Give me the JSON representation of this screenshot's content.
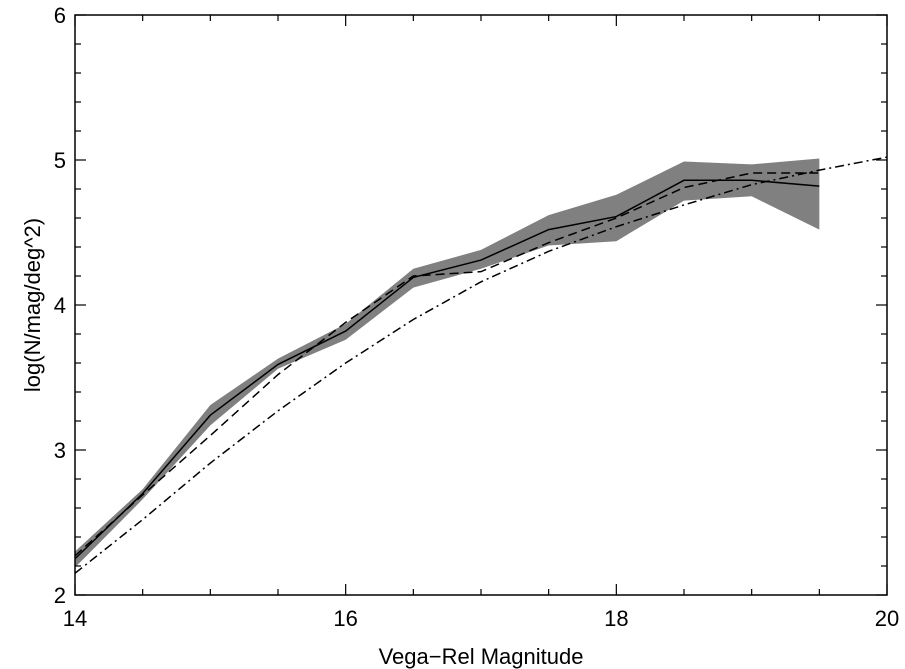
{
  "chart_data": {
    "type": "line",
    "title": "",
    "xlabel": "Vega−Rel Magnitude",
    "ylabel": "log(N/mag/deg^2)",
    "xlim": [
      14,
      20
    ],
    "ylim": [
      2,
      6
    ],
    "xticks": [
      14,
      16,
      18,
      20
    ],
    "yticks": [
      2,
      3,
      4,
      5,
      6
    ],
    "xtick_labels": [
      "14",
      "16",
      "18",
      "20"
    ],
    "ytick_labels": [
      "2",
      "3",
      "4",
      "5",
      "6"
    ],
    "grid": false,
    "legend": "none",
    "colors": {
      "band": "#808080",
      "line": "#000000"
    },
    "series": [
      {
        "style": "band",
        "x": [
          14,
          14.5,
          15,
          15.5,
          16,
          16.5,
          17,
          17.5,
          18,
          18.5,
          19,
          19.5
        ],
        "upper": [
          2.3,
          2.73,
          3.31,
          3.63,
          3.87,
          4.25,
          4.38,
          4.62,
          4.76,
          4.99,
          4.97,
          5.01
        ],
        "lower": [
          2.19,
          2.66,
          3.17,
          3.56,
          3.76,
          4.12,
          4.25,
          4.41,
          4.44,
          4.72,
          4.75,
          4.52
        ]
      },
      {
        "style": "solid",
        "x": [
          14,
          14.5,
          15,
          15.5,
          16,
          16.5,
          17,
          17.5,
          18,
          18.5,
          19,
          19.5
        ],
        "y": [
          2.25,
          2.7,
          3.24,
          3.59,
          3.82,
          4.19,
          4.31,
          4.52,
          4.61,
          4.86,
          4.86,
          4.82
        ]
      },
      {
        "style": "dashed",
        "x": [
          14,
          14.5,
          15,
          15.5,
          16,
          16.5,
          17,
          17.5,
          18,
          18.5,
          19,
          19.5
        ],
        "y": [
          2.27,
          2.69,
          3.1,
          3.52,
          3.88,
          4.2,
          4.23,
          4.43,
          4.6,
          4.81,
          4.91,
          4.91
        ]
      },
      {
        "style": "dashdot",
        "x": [
          14,
          14.5,
          15,
          15.5,
          16,
          16.5,
          17,
          17.5,
          18,
          18.5,
          19,
          19.5,
          20
        ],
        "y": [
          2.15,
          2.52,
          2.91,
          3.27,
          3.6,
          3.9,
          4.16,
          4.37,
          4.54,
          4.69,
          4.83,
          4.93,
          5.02
        ]
      }
    ]
  }
}
